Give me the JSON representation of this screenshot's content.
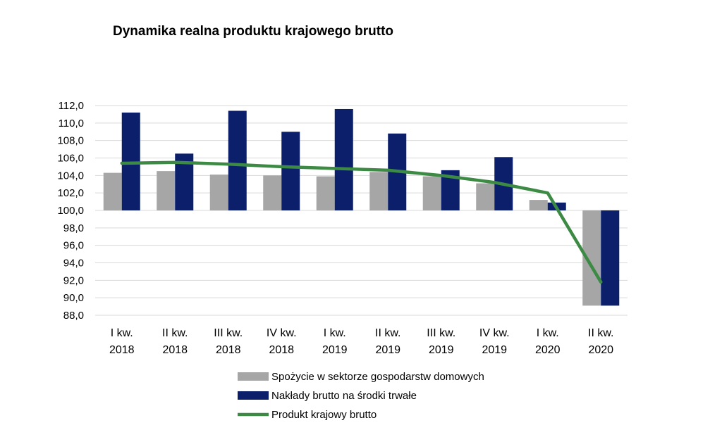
{
  "chart_data": {
    "type": "bar",
    "title": "Dynamika realna produktu krajowego brutto",
    "categories": [
      [
        "I kw.",
        "2018"
      ],
      [
        "II kw.",
        "2018"
      ],
      [
        "III kw.",
        "2018"
      ],
      [
        "IV kw.",
        "2018"
      ],
      [
        "I kw.",
        "2019"
      ],
      [
        "II kw.",
        "2019"
      ],
      [
        "III kw.",
        "2019"
      ],
      [
        "IV kw.",
        "2019"
      ],
      [
        "I kw.",
        "2020"
      ],
      [
        "II kw.",
        "2020"
      ]
    ],
    "baseline": 100.0,
    "ylim": [
      88.0,
      112.0
    ],
    "ytick_step": 2.0,
    "yticks": [
      "88,0",
      "90,0",
      "92,0",
      "94,0",
      "96,0",
      "98,0",
      "100,0",
      "102,0",
      "104,0",
      "106,0",
      "108,0",
      "110,0",
      "112,0"
    ],
    "grid": true,
    "legend_position": "bottom",
    "series": [
      {
        "name": "Spożycie w sektorze gospodarstw domowych",
        "kind": "bar",
        "color": "#a6a6a6",
        "values": [
          104.3,
          104.5,
          104.1,
          104.0,
          103.9,
          104.4,
          103.9,
          103.1,
          101.2,
          89.1
        ]
      },
      {
        "name": "Nakłady brutto na środki trwałe",
        "kind": "bar",
        "color": "#0b1f6b",
        "values": [
          111.2,
          106.5,
          111.4,
          109.0,
          111.6,
          108.8,
          104.6,
          106.1,
          100.9,
          89.1
        ]
      },
      {
        "name": "Produkt krajowy brutto",
        "kind": "line",
        "color": "#3c8a44",
        "values": [
          105.4,
          105.5,
          105.3,
          105.0,
          104.8,
          104.6,
          104.0,
          103.2,
          102.0,
          91.8
        ]
      }
    ]
  }
}
